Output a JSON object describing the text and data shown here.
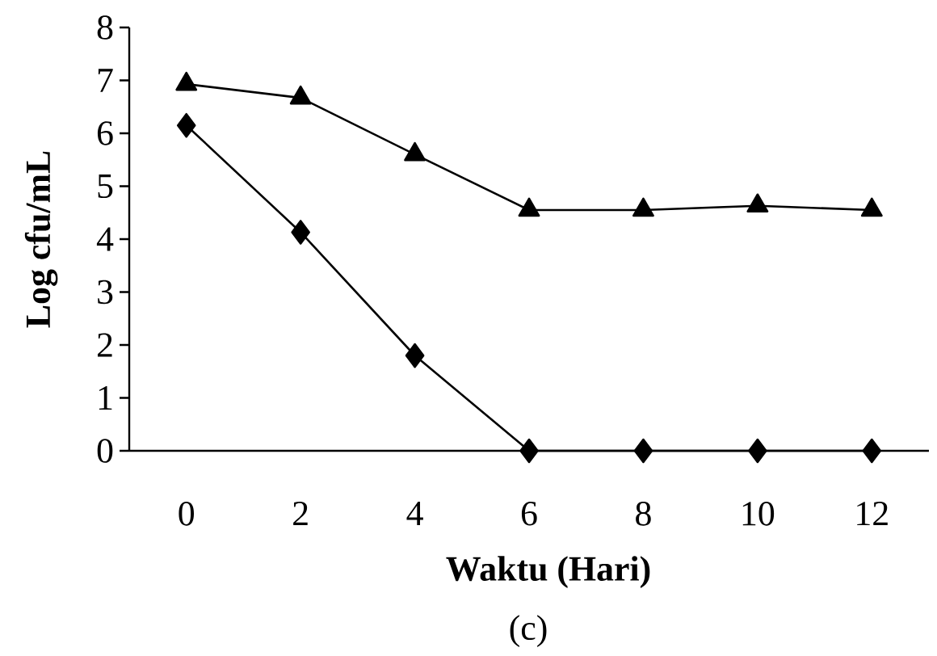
{
  "chart_data": {
    "type": "line",
    "xlabel": "Waktu (Hari)",
    "ylabel": "Log cfu/mL",
    "categories": [
      "0",
      "2",
      "4",
      "6",
      "8",
      "10",
      "12"
    ],
    "series": [
      {
        "color": "#000000",
        "marker": "triangle",
        "values": [
          6.93,
          6.67,
          5.6,
          4.55,
          4.55,
          4.63,
          4.55
        ]
      },
      {
        "color": "#000000",
        "marker": "diamond",
        "values": [
          6.15,
          4.13,
          1.8,
          0,
          0,
          0,
          0
        ]
      }
    ],
    "ylim": [
      0,
      8
    ],
    "yticks": [
      0,
      1,
      2,
      3,
      4,
      5,
      6,
      7,
      8
    ],
    "grid": false,
    "line_style": "solid",
    "annotations": [
      "(c)"
    ]
  }
}
